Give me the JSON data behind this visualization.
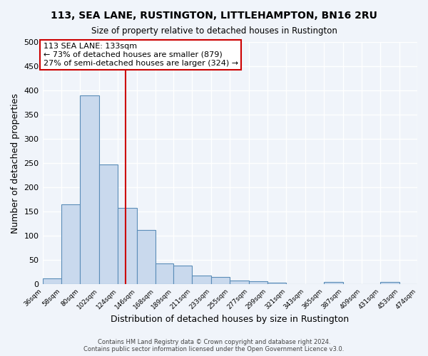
{
  "title": "113, SEA LANE, RUSTINGTON, LITTLEHAMPTON, BN16 2RU",
  "subtitle": "Size of property relative to detached houses in Rustington",
  "xlabel": "Distribution of detached houses by size in Rustington",
  "ylabel": "Number of detached properties",
  "bar_color": "#c9d9ed",
  "bar_edge_color": "#5b8db8",
  "background_color": "#f0f4fa",
  "grid_color": "#ffffff",
  "vline_x": 133,
  "vline_color": "#cc0000",
  "annotation_title": "113 SEA LANE: 133sqm",
  "annotation_line1": "← 73% of detached houses are smaller (879)",
  "annotation_line2": "27% of semi-detached houses are larger (324) →",
  "annotation_box_color": "#ffffff",
  "annotation_box_edge": "#cc0000",
  "bin_edges": [
    36,
    58,
    80,
    102,
    124,
    146,
    168,
    189,
    211,
    233,
    255,
    277,
    299,
    321,
    343,
    365,
    387,
    409,
    431,
    453,
    474
  ],
  "bin_labels": [
    "36sqm",
    "58sqm",
    "80sqm",
    "102sqm",
    "124sqm",
    "146sqm",
    "168sqm",
    "189sqm",
    "211sqm",
    "233sqm",
    "255sqm",
    "277sqm",
    "299sqm",
    "321sqm",
    "343sqm",
    "365sqm",
    "387sqm",
    "409sqm",
    "431sqm",
    "453sqm",
    "474sqm"
  ],
  "bar_heights": [
    13,
    165,
    390,
    248,
    158,
    113,
    43,
    39,
    18,
    15,
    8,
    6,
    3,
    0,
    0,
    5,
    0,
    0,
    5,
    0
  ],
  "ylim": [
    0,
    500
  ],
  "yticks": [
    0,
    50,
    100,
    150,
    200,
    250,
    300,
    350,
    400,
    450,
    500
  ],
  "footer_line1": "Contains HM Land Registry data © Crown copyright and database right 2024.",
  "footer_line2": "Contains public sector information licensed under the Open Government Licence v3.0."
}
